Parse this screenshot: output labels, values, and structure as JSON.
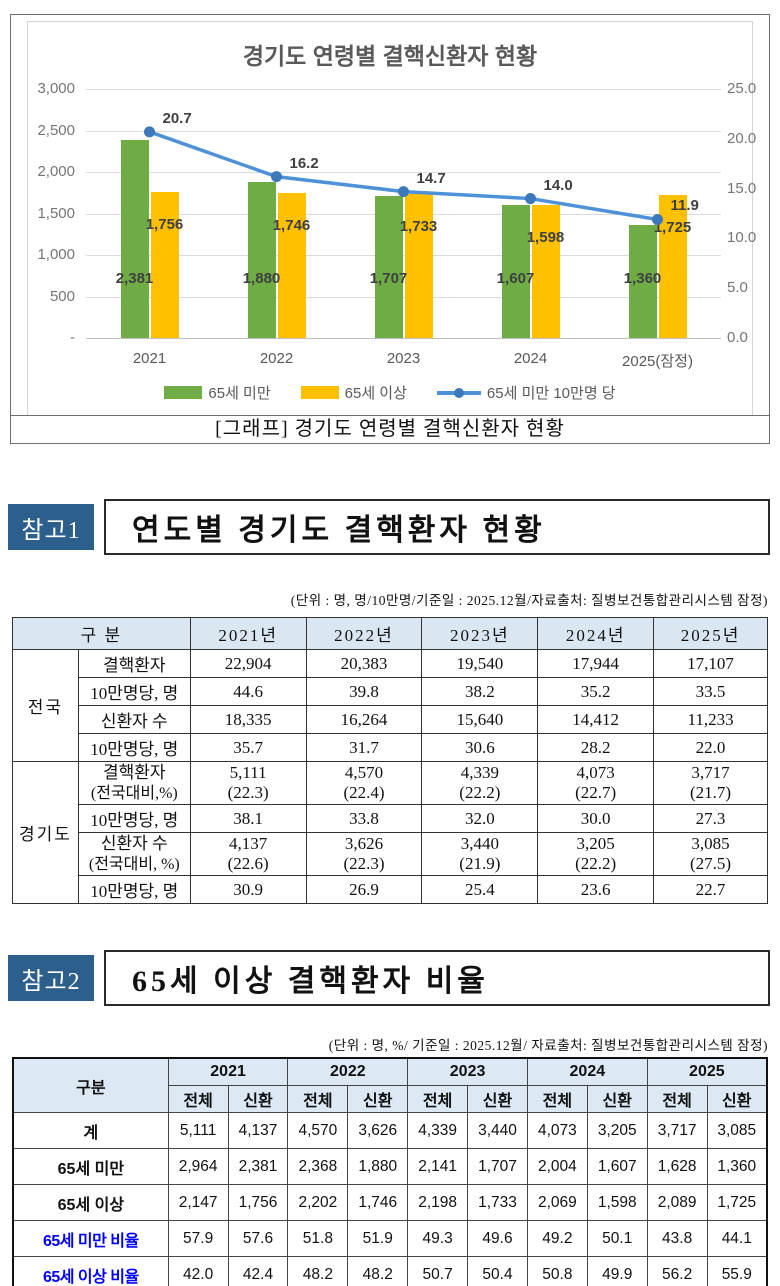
{
  "figure": {
    "title": "경기도 연령별 결핵신환자 현황",
    "caption": "[그래프] 경기도 연령별 결핵신환자 현황"
  },
  "chart_data": {
    "type": "bar",
    "title": "경기도 연령별 결핵신환자 현황",
    "categories": [
      "2021",
      "2022",
      "2023",
      "2024",
      "2025(잠정)"
    ],
    "series": [
      {
        "name": "65세 미만",
        "type": "bar",
        "axis": "left",
        "color": "#6fac46",
        "values": [
          2381,
          1880,
          1707,
          1607,
          1360
        ],
        "labels": [
          "2,381",
          "1,880",
          "1,707",
          "1,607",
          "1,360"
        ]
      },
      {
        "name": "65세 이상",
        "type": "bar",
        "axis": "left",
        "color": "#ffc000",
        "values": [
          1756,
          1746,
          1733,
          1598,
          1725
        ],
        "labels": [
          "1,756",
          "1,746",
          "1,733",
          "1,598",
          "1,725"
        ]
      },
      {
        "name": "65세 미만 10만명 당",
        "type": "line",
        "axis": "right",
        "color": "#4d92d8",
        "marker_color": "#3c79bb",
        "values": [
          20.7,
          16.2,
          14.7,
          14.0,
          11.9
        ],
        "labels": [
          "20.7",
          "16.2",
          "14.7",
          "14.0",
          "11.9"
        ]
      }
    ],
    "left_axis": {
      "min": 0,
      "max": 3000,
      "ticks": [
        "3,000",
        "2,500",
        "2,000",
        "1,500",
        "1,000",
        "500",
        "-"
      ]
    },
    "right_axis": {
      "min": 0,
      "max": 25,
      "ticks": [
        "25.0",
        "20.0",
        "15.0",
        "10.0",
        "5.0",
        "0.0"
      ]
    },
    "grid": true,
    "legend_position": "bottom"
  },
  "ref1": {
    "badge": "참고1",
    "title": "연도별 경기도 결핵환자 현황",
    "unit_note": "(단위 : 명, 명/10만명/기준일 : 2025.12월/자료출처: 질병보건통합관리시스템 잠정)"
  },
  "table1": {
    "corner": "구 분",
    "year_headers": [
      "2021년",
      "2022년",
      "2023년",
      "2024년",
      "2025년"
    ],
    "groups": [
      {
        "name": "전국",
        "rows": [
          {
            "label": "결핵환자",
            "values": [
              "22,904",
              "20,383",
              "19,540",
              "17,944",
              "17,107"
            ]
          },
          {
            "label": "10만명당, 명",
            "values": [
              "44.6",
              "39.8",
              "38.2",
              "35.2",
              "33.5"
            ]
          },
          {
            "label": "신환자 수",
            "values": [
              "18,335",
              "16,264",
              "15,640",
              "14,412",
              "11,233"
            ]
          },
          {
            "label": "10만명당, 명",
            "values": [
              "35.7",
              "31.7",
              "30.6",
              "28.2",
              "22.0"
            ]
          }
        ]
      },
      {
        "name": "경기도",
        "rows": [
          {
            "label": "결핵환자",
            "label2": "(전국대비,%)",
            "values": [
              "5,111",
              "4,570",
              "4,339",
              "4,073",
              "3,717"
            ],
            "values2": [
              "(22.3)",
              "(22.4)",
              "(22.2)",
              "(22.7)",
              "(21.7)"
            ]
          },
          {
            "label": "10만명당, 명",
            "values": [
              "38.1",
              "33.8",
              "32.0",
              "30.0",
              "27.3"
            ]
          },
          {
            "label": "신환자 수",
            "label2": "(전국대비, %)",
            "values": [
              "4,137",
              "3,626",
              "3,440",
              "3,205",
              "3,085"
            ],
            "values2": [
              "(22.6)",
              "(22.3)",
              "(21.9)",
              "(22.2)",
              "(27.5)"
            ]
          },
          {
            "label": "10만명당, 명",
            "values": [
              "30.9",
              "26.9",
              "25.4",
              "23.6",
              "22.7"
            ]
          }
        ]
      }
    ]
  },
  "ref2": {
    "badge": "참고2",
    "title": "65세 이상 결핵환자 비율",
    "unit_note": "(단위 : 명, %/ 기준일 : 2025.12월/ 자료출처: 질병보건통합관리시스템 잠정)"
  },
  "table2": {
    "corner": "구분",
    "years": [
      "2021",
      "2022",
      "2023",
      "2024",
      "2025"
    ],
    "subheaders": [
      "전체",
      "신환"
    ],
    "rows": [
      {
        "label": "계",
        "blue": false,
        "values": [
          "5,111",
          "4,137",
          "4,570",
          "3,626",
          "4,339",
          "3,440",
          "4,073",
          "3,205",
          "3,717",
          "3,085"
        ]
      },
      {
        "label": "65세 미만",
        "blue": false,
        "values": [
          "2,964",
          "2,381",
          "2,368",
          "1,880",
          "2,141",
          "1,707",
          "2,004",
          "1,607",
          "1,628",
          "1,360"
        ]
      },
      {
        "label": "65세 이상",
        "blue": false,
        "values": [
          "2,147",
          "1,756",
          "2,202",
          "1,746",
          "2,198",
          "1,733",
          "2,069",
          "1,598",
          "2,089",
          "1,725"
        ]
      },
      {
        "label": "65세 미만 비율",
        "blue": true,
        "values": [
          "57.9",
          "57.6",
          "51.8",
          "51.9",
          "49.3",
          "49.6",
          "49.2",
          "50.1",
          "43.8",
          "44.1"
        ]
      },
      {
        "label": "65세 이상 비율",
        "blue": true,
        "values": [
          "42.0",
          "42.4",
          "48.2",
          "48.2",
          "50.7",
          "50.4",
          "50.8",
          "49.9",
          "56.2",
          "55.9"
        ]
      }
    ]
  }
}
